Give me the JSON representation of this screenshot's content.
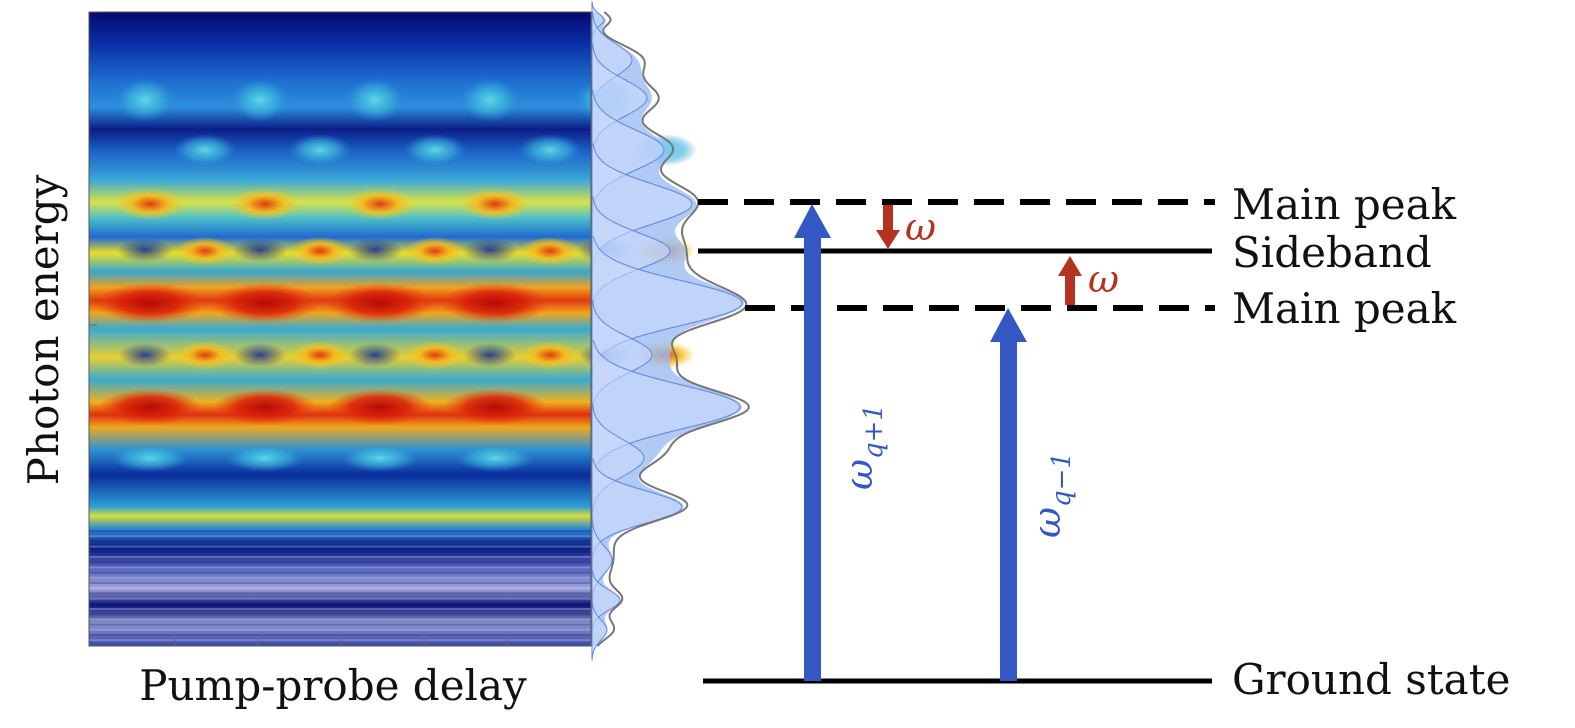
{
  "axes": {
    "ylabel": "Photon energy",
    "xlabel": "Pump-probe delay"
  },
  "levels": {
    "main_peak_upper": "Main peak",
    "sideband": "Sideband",
    "main_peak_lower": "Main peak",
    "ground_state": "Ground state"
  },
  "transitions": {
    "upper_symbol": "ω",
    "upper_subscript": "q+1",
    "lower_symbol": "ω",
    "lower_subscript": "q−1",
    "omega_down": "ω",
    "omega_up": "ω"
  },
  "colors": {
    "transition_arrow": "#3358c4",
    "omega_arrow": "#b5321e",
    "spectrum_fill": "#7fa4ee",
    "level_line": "#000000"
  }
}
